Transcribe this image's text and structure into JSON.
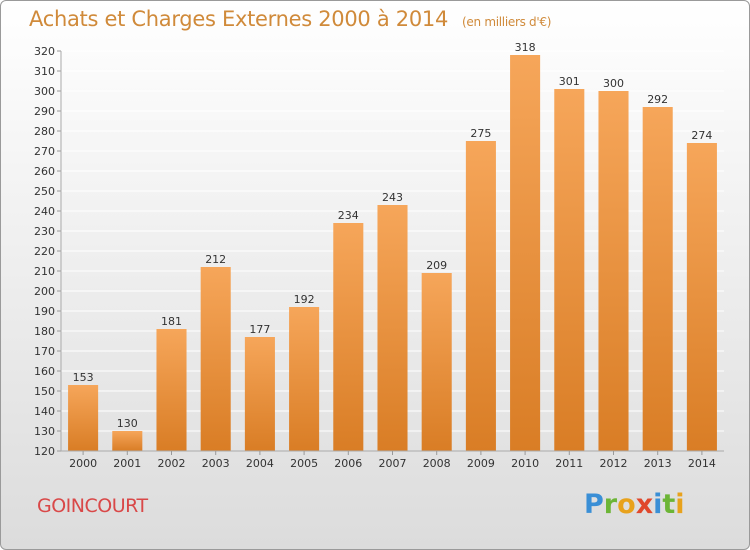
{
  "header": {
    "title": "Achats et Charges Externes 2000 à 2014",
    "unit": "(en milliers d'€)"
  },
  "footer": {
    "city": "GOINCOURT",
    "logo_letters": [
      "P",
      "r",
      "o",
      "x",
      "i",
      "t",
      "i"
    ]
  },
  "colors": {
    "bar_top": "#f6a65a",
    "bar_bottom": "#d97d25",
    "grid": "#ffffff",
    "axis_text": "#333333"
  },
  "chart_data": {
    "type": "bar",
    "title": "Achats et Charges Externes 2000 à 2014",
    "xlabel": "",
    "ylabel": "",
    "categories": [
      "2000",
      "2001",
      "2002",
      "2003",
      "2004",
      "2005",
      "2006",
      "2007",
      "2008",
      "2009",
      "2010",
      "2011",
      "2012",
      "2013",
      "2014"
    ],
    "values": [
      153,
      130,
      181,
      212,
      177,
      192,
      234,
      243,
      209,
      275,
      318,
      301,
      300,
      292,
      274
    ],
    "ylim": [
      120,
      320
    ],
    "ytick_step": 10,
    "grid": true,
    "data_labels": true
  }
}
